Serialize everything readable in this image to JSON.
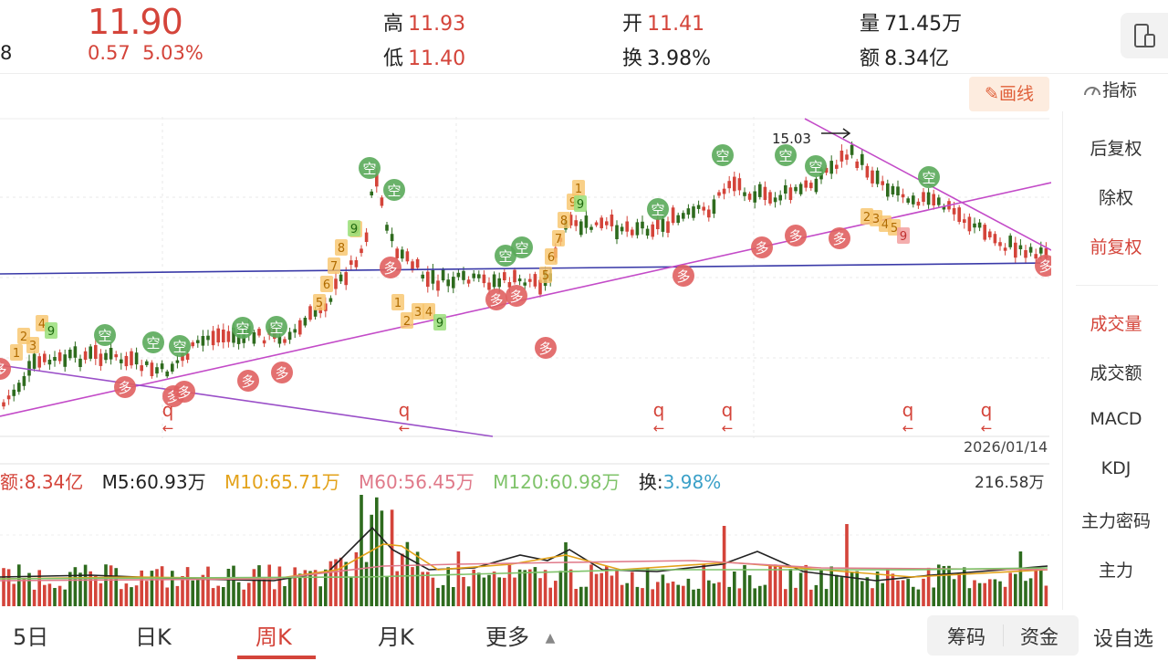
{
  "header": {
    "left_fragment": "8",
    "price": "11.90",
    "change": "0.57",
    "change_pct": "5.03%",
    "high_label": "高",
    "high_value": "11.93",
    "low_label": "低",
    "low_value": "11.40",
    "open_label": "开",
    "open_value": "11.41",
    "turnover_label": "换",
    "turnover_value": "3.98%",
    "volume_label": "量",
    "volume_value": "71.45万",
    "amount_label": "额",
    "amount_value": "8.34亿"
  },
  "toolbar": {
    "draw_label": "画线",
    "indicator_label": "指标",
    "device_icon": "phone-landscape-icon"
  },
  "chart": {
    "peak_label": "15.03",
    "date_label": "2026/01/14",
    "buy_marker": "多",
    "sell_marker": "空",
    "q_marker": "q",
    "nine_marker": "9",
    "count_digits": [
      "1",
      "2",
      "3",
      "4",
      "5",
      "6",
      "7",
      "8",
      "9"
    ]
  },
  "volume_legend": {
    "amount": "额:8.34亿",
    "m5": "M5:60.93万",
    "m10": "M10:65.71万",
    "m60": "M60:56.45万",
    "m120": "M120:60.98万",
    "turnover_label": "换:",
    "turnover_value": "3.98%",
    "max_value": "216.58万"
  },
  "colors": {
    "up": "#d4443a",
    "down": "#2e6b1e",
    "m5": "#222222",
    "m10": "#e3a21a",
    "m60": "#e07a8a",
    "m120": "#7fc36a",
    "turnover_value": "#3aa0c8",
    "trendline_magenta": "#c34bc8",
    "trendline_navy": "#3a3aa8"
  },
  "sidebar": {
    "items": [
      "后复权",
      "除权",
      "前复权",
      "成交量",
      "成交额",
      "MACD",
      "KDJ",
      "主力密码",
      "主力"
    ],
    "active": [
      "前复权",
      "成交量"
    ]
  },
  "tabs": {
    "items": [
      "5日",
      "日K",
      "周K",
      "月K",
      "更多"
    ],
    "active": "周K",
    "more_icon": "triangle-up-icon"
  },
  "bottom_actions": {
    "chips": "筹码",
    "funds": "资金",
    "set_watch": "设自选"
  }
}
